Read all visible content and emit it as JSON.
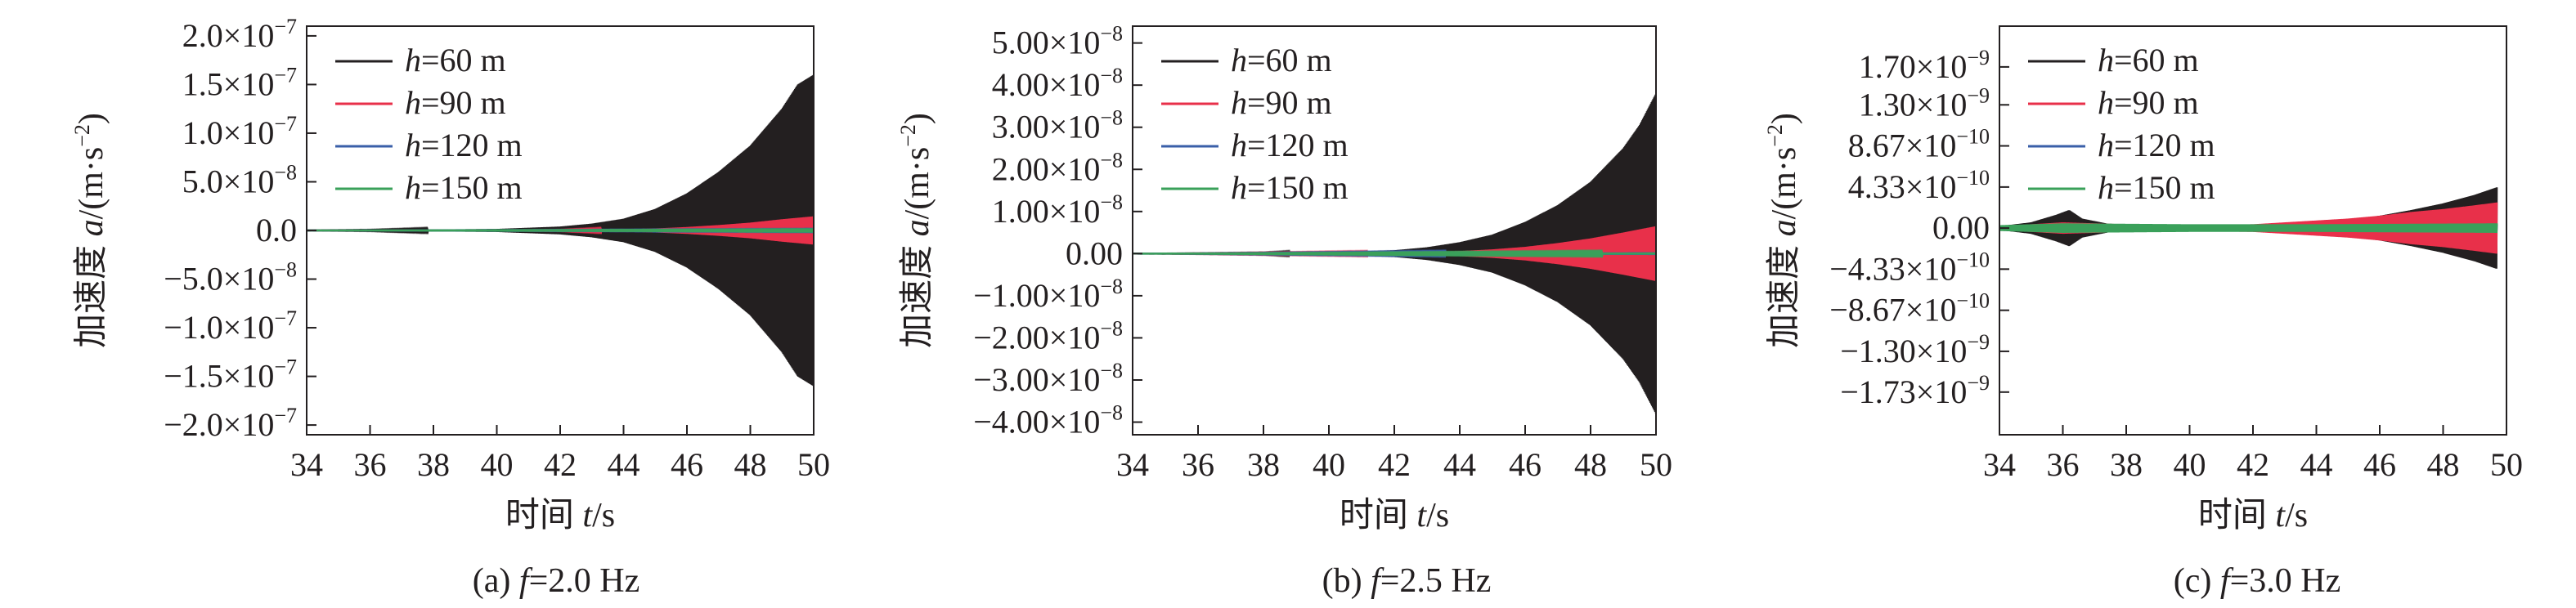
{
  "colors": {
    "axis": "#231f20",
    "series": [
      "#231f20",
      "#e8304a",
      "#3a5fa8",
      "#3aa05a"
    ]
  },
  "chart_data": [
    {
      "type": "line",
      "caption": "(a) f=2.0 Hz",
      "caption_prefix": "(a) ",
      "caption_var": "f",
      "caption_value": "=2.0 Hz",
      "xlabel": "时间 t/s",
      "xlabel_text": "时间 ",
      "xlabel_var": "t",
      "xlabel_unit": "/s",
      "ylabel": "加速度 a/(m·s⁻²)",
      "ylabel_text": "加速度 ",
      "ylabel_var": "a",
      "ylabel_unit": "/(m·s",
      "ylabel_exp": "−2",
      "ylabel_close": ")",
      "xlim": [
        34,
        50
      ],
      "ylim": [
        -2.1e-07,
        2.1e-07
      ],
      "x_ticks": [
        34,
        36,
        38,
        40,
        42,
        44,
        46,
        48,
        50
      ],
      "y_ticks": [
        {
          "value": 2e-07,
          "mant": "2.0×10",
          "exp": "−7"
        },
        {
          "value": 1.5e-07,
          "mant": "1.5×10",
          "exp": "−7"
        },
        {
          "value": 1e-07,
          "mant": "1.0×10",
          "exp": "−7"
        },
        {
          "value": 5e-08,
          "mant": "5.0×10",
          "exp": "−8"
        },
        {
          "value": 0,
          "mant": "0.0",
          "exp": ""
        },
        {
          "value": -5e-08,
          "mant": "−5.0×10",
          "exp": "−8"
        },
        {
          "value": -1e-07,
          "mant": "−1.0×10",
          "exp": "−7"
        },
        {
          "value": -1.5e-07,
          "mant": "−1.5×10",
          "exp": "−7"
        },
        {
          "value": -2e-07,
          "mant": "−2.0×10",
          "exp": "−7"
        }
      ],
      "legend_position": "top-left",
      "series": [
        {
          "name": "h=60 m",
          "name_var": "h",
          "name_rest": "=60 m",
          "envelope": {
            "x": [
              34,
              36,
              38,
              40,
              42,
              43,
              44,
              45,
              46,
              47,
              48,
              49,
              49.5,
              50
            ],
            "amp": [
              1e-10,
              3e-10,
              8e-10,
              1.5e-09,
              4e-09,
              7e-09,
              1.2e-08,
              2.2e-08,
              3.8e-08,
              6e-08,
              8.7e-08,
              1.25e-07,
              1.5e-07,
              1.6e-07
            ]
          }
        },
        {
          "name": "h=90 m",
          "name_var": "h",
          "name_rest": "=90 m",
          "envelope": {
            "x": [
              34,
              40,
              42,
              44,
              45,
              46,
              47,
              48,
              49,
              50
            ],
            "amp": [
              0,
              1e-10,
              3e-10,
              1e-09,
              2e-09,
              3.5e-09,
              5.5e-09,
              8e-09,
              1.15e-08,
              1.45e-08
            ]
          }
        },
        {
          "name": "h=120 m",
          "name_var": "h",
          "name_rest": "=120 m",
          "envelope": {
            "x": [
              34,
              50
            ],
            "amp": [
              0,
              5e-10
            ]
          }
        },
        {
          "name": "h=150 m",
          "name_var": "h",
          "name_rest": "=150 m",
          "envelope": {
            "x": [
              34,
              50
            ],
            "amp": [
              0,
              4e-10
            ]
          }
        }
      ]
    },
    {
      "type": "line",
      "caption": "(b) f=2.5 Hz",
      "caption_prefix": "(b) ",
      "caption_var": "f",
      "caption_value": "=2.5 Hz",
      "xlabel": "时间 t/s",
      "xlabel_text": "时间 ",
      "xlabel_var": "t",
      "xlabel_unit": "/s",
      "ylabel": "加速度 a/(m·s⁻²)",
      "ylabel_text": "加速度 ",
      "ylabel_var": "a",
      "ylabel_unit": "/(m·s",
      "ylabel_exp": "−2",
      "ylabel_close": ")",
      "xlim": [
        34,
        50
      ],
      "ylim": [
        -4.3e-08,
        5.4e-08
      ],
      "x_ticks": [
        34,
        36,
        38,
        40,
        42,
        44,
        46,
        48,
        50
      ],
      "y_ticks": [
        {
          "value": 5e-08,
          "mant": "5.00×10",
          "exp": "−8"
        },
        {
          "value": 4e-08,
          "mant": "4.00×10",
          "exp": "−8"
        },
        {
          "value": 3e-08,
          "mant": "3.00×10",
          "exp": "−8"
        },
        {
          "value": 2e-08,
          "mant": "2.00×10",
          "exp": "−8"
        },
        {
          "value": 1e-08,
          "mant": "1.00×10",
          "exp": "−8"
        },
        {
          "value": 0,
          "mant": "0.00",
          "exp": ""
        },
        {
          "value": -1e-08,
          "mant": "−1.00×10",
          "exp": "−8"
        },
        {
          "value": -2e-08,
          "mant": "−2.00×10",
          "exp": "−8"
        },
        {
          "value": -3e-08,
          "mant": "−3.00×10",
          "exp": "−8"
        },
        {
          "value": -4e-08,
          "mant": "−4.00×10",
          "exp": "−8"
        }
      ],
      "legend_position": "top-left",
      "series": [
        {
          "name": "h=60 m",
          "name_var": "h",
          "name_rest": "=60 m",
          "envelope": {
            "x": [
              34,
              38,
              40,
              42,
              43,
              44,
              45,
              46,
              47,
              48,
              49,
              49.5,
              50
            ],
            "amp": [
              0,
              1e-10,
              3e-10,
              8e-10,
              1.5e-09,
              2.7e-09,
              4.5e-09,
              7.5e-09,
              1.15e-08,
              1.7e-08,
              2.5e-08,
              3.05e-08,
              3.8e-08
            ]
          }
        },
        {
          "name": "h=90 m",
          "name_var": "h",
          "name_rest": "=90 m",
          "envelope": {
            "x": [
              34,
              42,
              44,
              45,
              46,
              47,
              48,
              49,
              50
            ],
            "amp": [
              0,
              2e-10,
              6e-10,
              1e-09,
              1.6e-09,
              2.5e-09,
              3.6e-09,
              5e-09,
              6.5e-09
            ]
          }
        },
        {
          "name": "h=120 m",
          "name_var": "h",
          "name_rest": "=120 m",
          "envelope": {
            "x": [
              34,
              50
            ],
            "amp": [
              0,
              3e-10
            ]
          }
        },
        {
          "name": "h=150 m",
          "name_var": "h",
          "name_rest": "=150 m",
          "envelope": {
            "x": [
              34,
              50
            ],
            "amp": [
              0,
              2e-10
            ]
          }
        }
      ]
    },
    {
      "type": "line",
      "caption": "(c) f=3.0 Hz",
      "caption_prefix": "(c) ",
      "caption_var": "f",
      "caption_value": "=3.0 Hz",
      "xlabel": "时间 t/s",
      "xlabel_text": "时间 ",
      "xlabel_var": "t",
      "xlabel_unit": "/s",
      "ylabel": "加速度 a/(m·s⁻²)",
      "ylabel_text": "加速度 ",
      "ylabel_var": "a",
      "ylabel_unit": "/(m·s",
      "ylabel_exp": "−2",
      "ylabel_close": ")",
      "xlim": [
        34,
        50
      ],
      "ylim": [
        -2.18e-09,
        2.13e-09
      ],
      "x_ticks": [
        34,
        36,
        38,
        40,
        42,
        44,
        46,
        48,
        50
      ],
      "y_ticks": [
        {
          "value": 1.7e-09,
          "mant": "1.70×10",
          "exp": "−9"
        },
        {
          "value": 1.3e-09,
          "mant": "1.30×10",
          "exp": "−9"
        },
        {
          "value": 8.67e-10,
          "mant": "8.67×10",
          "exp": "−10"
        },
        {
          "value": 4.33e-10,
          "mant": "4.33×10",
          "exp": "−10"
        },
        {
          "value": 0,
          "mant": "0.00",
          "exp": ""
        },
        {
          "value": -4.33e-10,
          "mant": "−4.33×10",
          "exp": "−10"
        },
        {
          "value": -8.67e-10,
          "mant": "−8.67×10",
          "exp": "−10"
        },
        {
          "value": -1.3e-09,
          "mant": "−1.30×10",
          "exp": "−9"
        },
        {
          "value": -1.73e-09,
          "mant": "−1.73×10",
          "exp": "−9"
        }
      ],
      "legend_position": "top-left",
      "series": [
        {
          "name": "h=60 m",
          "name_var": "h",
          "name_rest": "=60 m",
          "envelope": {
            "x": [
              34,
              35,
              35.8,
              36.2,
              36.6,
              37.5,
              40,
              42,
              44,
              45,
              46,
              47,
              48,
              49,
              49.7
            ],
            "amp": [
              2e-11,
              6e-11,
              1.4e-10,
              1.9e-10,
              1e-10,
              4e-11,
              3e-11,
              3e-11,
              6e-11,
              8e-11,
              1.3e-10,
              1.9e-10,
              2.6e-10,
              3.5e-10,
              4.3e-10
            ]
          }
        },
        {
          "name": "h=90 m",
          "name_var": "h",
          "name_rest": "=90 m",
          "envelope": {
            "x": [
              34,
              36,
              38,
              40,
              42,
              44,
              45,
              46,
              47,
              48,
              49,
              49.7
            ],
            "amp": [
              2e-11,
              6e-11,
              4e-11,
              3e-11,
              4e-11,
              8e-11,
              1e-10,
              1.3e-10,
              1.7e-10,
              2e-10,
              2.4e-10,
              2.7e-10
            ]
          }
        },
        {
          "name": "h=120 m",
          "name_var": "h",
          "name_rest": "=120 m",
          "envelope": {
            "x": [
              34,
              36,
              40,
              44,
              49.7
            ],
            "amp": [
              2e-11,
              4e-11,
              3e-11,
              3e-11,
              4e-11
            ]
          }
        },
        {
          "name": "h=150 m",
          "name_var": "h",
          "name_rest": "=150 m",
          "envelope": {
            "x": [
              34,
              36,
              40,
              44,
              49.7
            ],
            "amp": [
              3e-11,
              5e-11,
              4e-11,
              4e-11,
              5e-11
            ]
          }
        }
      ]
    }
  ]
}
